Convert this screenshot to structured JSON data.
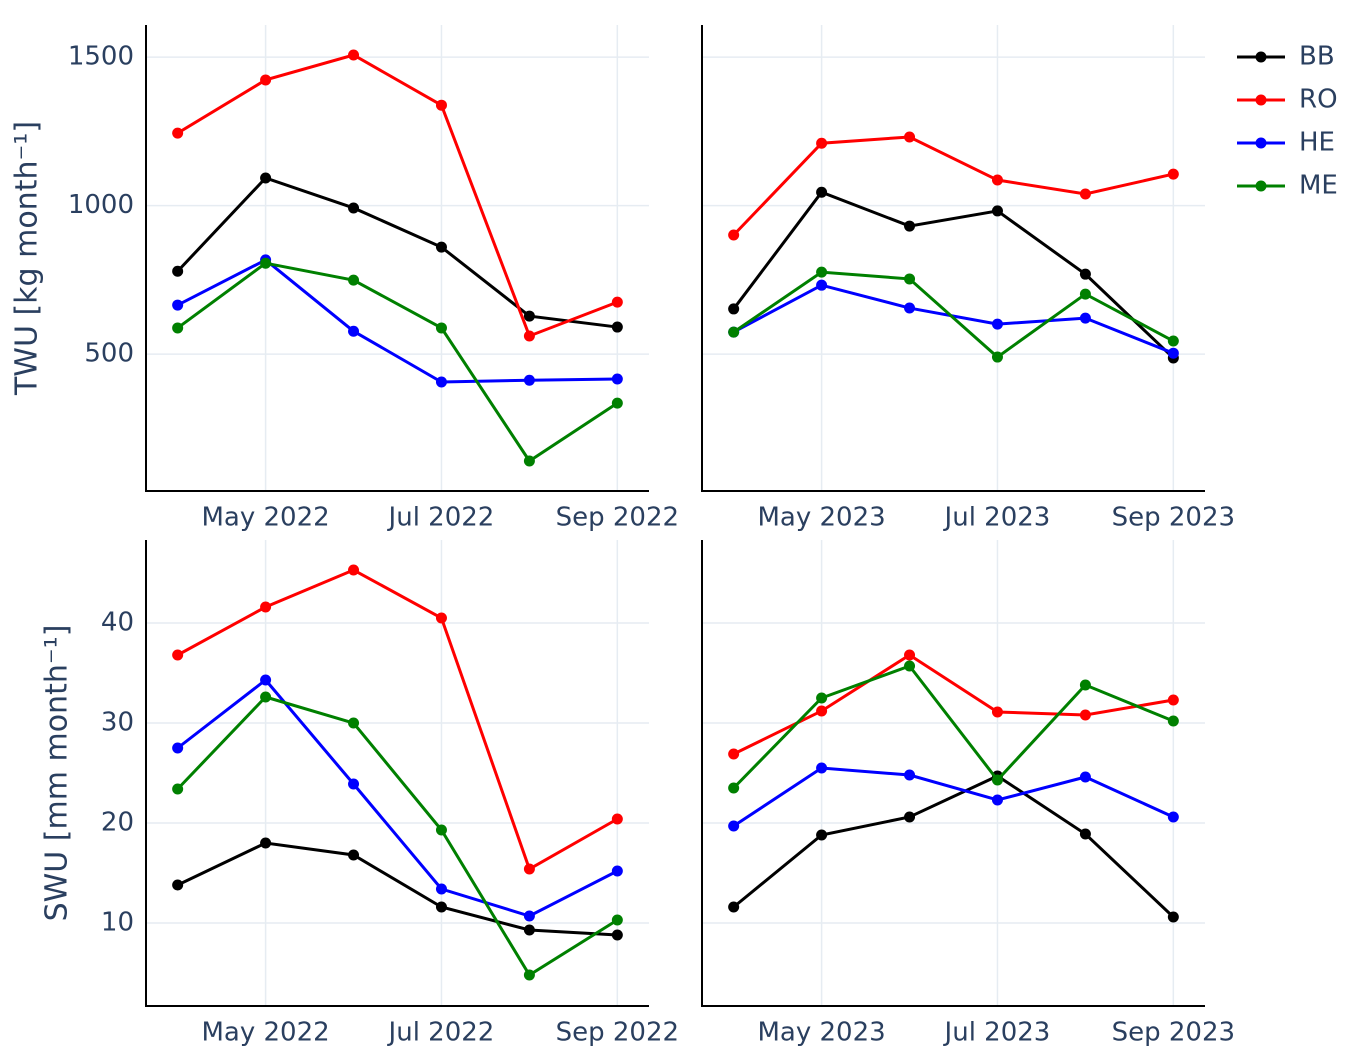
{
  "chart_data": [
    {
      "type": "line",
      "y_label": "TWU [kg month⁻¹]",
      "x": [
        "2022-04",
        "2022-05",
        "2022-06",
        "2022-07",
        "2022-08",
        "2022-09"
      ],
      "xticks": [
        {
          "value": "2022-05",
          "label": "May 2022"
        },
        {
          "value": "2022-07",
          "label": "Jul 2022"
        },
        {
          "value": "2022-09",
          "label": "Sep 2022"
        }
      ],
      "ylim": [
        39,
        1608
      ],
      "yticks": [
        500,
        1000,
        1500
      ],
      "grid": true,
      "show_ytick_labels": true,
      "series": [
        {
          "color": "#000000",
          "values": [
            779,
            1093,
            992,
            860,
            628,
            591
          ]
        },
        {
          "color": "#ff0000",
          "values": [
            1244,
            1423,
            1507,
            1338,
            561,
            675
          ]
        },
        {
          "color": "#0000ff",
          "values": [
            665,
            817,
            577,
            406,
            412,
            416
          ]
        },
        {
          "color": "#008000",
          "values": [
            588,
            806,
            749,
            588,
            140,
            335
          ]
        }
      ]
    },
    {
      "type": "line",
      "x": [
        "2023-04",
        "2023-05",
        "2023-06",
        "2023-07",
        "2023-08",
        "2023-09"
      ],
      "xticks": [
        {
          "value": "2023-05",
          "label": "May 2023"
        },
        {
          "value": "2023-07",
          "label": "Jul 2023"
        },
        {
          "value": "2023-09",
          "label": "Sep 2023"
        }
      ],
      "ylim": [
        39,
        1608
      ],
      "yticks": [
        500,
        1000,
        1500
      ],
      "grid": true,
      "show_ytick_labels": false,
      "series": [
        {
          "name": "BB",
          "color": "#000000",
          "values": [
            652,
            1045,
            931,
            982,
            769,
            487
          ]
        },
        {
          "name": "RO",
          "color": "#ff0000",
          "values": [
            901,
            1210,
            1231,
            1086,
            1039,
            1106
          ]
        },
        {
          "name": "HE",
          "color": "#0000ff",
          "values": [
            574,
            732,
            655,
            601,
            621,
            503
          ]
        },
        {
          "name": "ME",
          "color": "#008000",
          "values": [
            574,
            776,
            753,
            490,
            702,
            544
          ]
        }
      ]
    },
    {
      "type": "line",
      "y_label": "SWU [mm month⁻¹]",
      "x": [
        "2022-04",
        "2022-05",
        "2022-06",
        "2022-07",
        "2022-08",
        "2022-09"
      ],
      "xticks": [
        {
          "value": "2022-05",
          "label": "May 2022"
        },
        {
          "value": "2022-07",
          "label": "Jul 2022"
        },
        {
          "value": "2022-09",
          "label": "Sep 2022"
        }
      ],
      "ylim": [
        1.7,
        48.3
      ],
      "yticks": [
        10,
        20,
        30,
        40
      ],
      "grid": true,
      "show_ytick_labels": true,
      "series": [
        {
          "color": "#000000",
          "values": [
            13.8,
            18.0,
            16.8,
            11.6,
            9.3,
            8.8
          ]
        },
        {
          "color": "#ff0000",
          "values": [
            36.8,
            41.6,
            45.3,
            40.5,
            15.4,
            20.4
          ]
        },
        {
          "color": "#0000ff",
          "values": [
            27.5,
            34.3,
            23.9,
            13.4,
            10.7,
            15.2
          ]
        },
        {
          "color": "#008000",
          "values": [
            23.4,
            32.6,
            30.0,
            19.3,
            4.8,
            10.3
          ]
        }
      ]
    },
    {
      "type": "line",
      "x": [
        "2023-04",
        "2023-05",
        "2023-06",
        "2023-07",
        "2023-08",
        "2023-09"
      ],
      "xticks": [
        {
          "value": "2023-05",
          "label": "May 2023"
        },
        {
          "value": "2023-07",
          "label": "Jul 2023"
        },
        {
          "value": "2023-09",
          "label": "Sep 2023"
        }
      ],
      "ylim": [
        1.7,
        48.3
      ],
      "yticks": [
        10,
        20,
        30,
        40
      ],
      "grid": true,
      "show_ytick_labels": false,
      "series": [
        {
          "color": "#000000",
          "values": [
            11.6,
            18.8,
            20.6,
            24.7,
            18.9,
            10.6
          ]
        },
        {
          "color": "#ff0000",
          "values": [
            26.9,
            31.2,
            36.8,
            31.1,
            30.8,
            32.3
          ]
        },
        {
          "color": "#0000ff",
          "values": [
            19.7,
            25.5,
            24.8,
            22.3,
            24.6,
            20.6
          ]
        },
        {
          "color": "#008000",
          "values": [
            23.5,
            32.5,
            35.7,
            24.3,
            33.8,
            30.2
          ]
        }
      ]
    }
  ]
}
